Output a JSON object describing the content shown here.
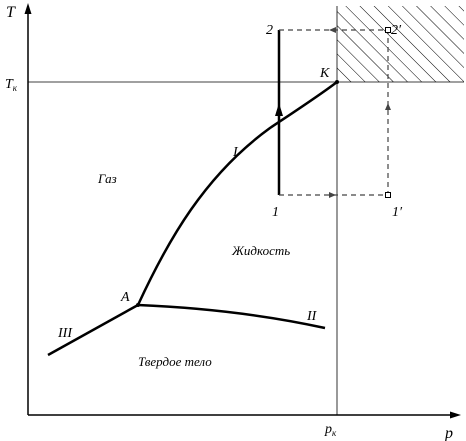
{
  "axes": {
    "y_label": "T",
    "x_label": "p",
    "tk_label": "T",
    "tk_sub": "к",
    "pk_label": "p",
    "pk_sub": "к"
  },
  "regions": {
    "gas": "Газ",
    "liquid": "Жидкость",
    "solid": "Твердое тело"
  },
  "points": {
    "critical": "K",
    "triple": "A",
    "p1": "1",
    "p2": "2",
    "p1prime": "1′",
    "p2prime": "2′"
  },
  "curves": {
    "vaporization": "I",
    "melting": "II",
    "sublimation": "III"
  }
}
